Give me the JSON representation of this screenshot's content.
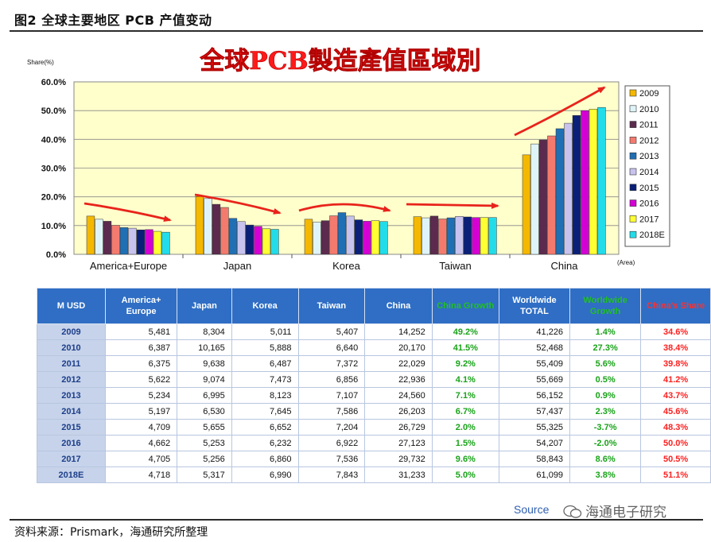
{
  "figure_title": "图2  全球主要地区 PCB 产值变动",
  "footer_source": "资料来源：Prismark，海通研究所整理",
  "watermark": "海通电子研究",
  "source_note": "Source",
  "chart_data": {
    "type": "bar",
    "title": "全球PCB製造產值區域別",
    "ylabel": "Share(%)",
    "xlabel": "(Area)",
    "ylim": [
      0,
      60
    ],
    "yticks": [
      "0.0%",
      "10.0%",
      "20.0%",
      "30.0%",
      "40.0%",
      "50.0%",
      "60.0%"
    ],
    "grid": true,
    "legend_position": "right",
    "categories": [
      "America+Europe",
      "Japan",
      "Korea",
      "Taiwan",
      "China"
    ],
    "series": [
      {
        "name": "2009",
        "color": "#f5b800",
        "values": [
          13.3,
          20.1,
          12.2,
          13.1,
          34.6
        ]
      },
      {
        "name": "2010",
        "color": "#dff4f8",
        "values": [
          12.2,
          19.4,
          11.2,
          12.7,
          38.4
        ]
      },
      {
        "name": "2011",
        "color": "#5c2a4e",
        "values": [
          11.5,
          17.4,
          11.7,
          13.3,
          39.8
        ]
      },
      {
        "name": "2012",
        "color": "#f47a6e",
        "values": [
          10.1,
          16.3,
          13.4,
          12.3,
          41.2
        ]
      },
      {
        "name": "2013",
        "color": "#1f6fb5",
        "values": [
          9.3,
          12.5,
          14.5,
          12.7,
          43.7
        ]
      },
      {
        "name": "2014",
        "color": "#c7c3ee",
        "values": [
          9.1,
          11.4,
          13.3,
          13.2,
          45.6
        ]
      },
      {
        "name": "2015",
        "color": "#0a1f78",
        "values": [
          8.5,
          10.2,
          12.0,
          13.0,
          48.3
        ]
      },
      {
        "name": "2016",
        "color": "#d400d4",
        "values": [
          8.6,
          9.7,
          11.5,
          12.8,
          50.0
        ]
      },
      {
        "name": "2017",
        "color": "#ffff33",
        "values": [
          8.0,
          8.9,
          11.7,
          12.8,
          50.5
        ]
      },
      {
        "name": "2018E",
        "color": "#22dcea",
        "values": [
          7.7,
          8.7,
          11.4,
          12.8,
          51.1
        ]
      }
    ],
    "trend_arrows_color": "#e8231b"
  },
  "table": {
    "headers": [
      "M USD",
      "America+ Europe",
      "Japan",
      "Korea",
      "Taiwan",
      "China",
      "China Growth",
      "Worldwide TOTAL",
      "Worldwide Growth",
      "China's Share"
    ],
    "rows": [
      [
        "2009",
        "5,481",
        "8,304",
        "5,011",
        "5,407",
        "14,252",
        "49.2%",
        "41,226",
        "1.4%",
        "34.6%"
      ],
      [
        "2010",
        "6,387",
        "10,165",
        "5,888",
        "6,640",
        "20,170",
        "41.5%",
        "52,468",
        "27.3%",
        "38.4%"
      ],
      [
        "2011",
        "6,375",
        "9,638",
        "6,487",
        "7,372",
        "22,029",
        "9.2%",
        "55,409",
        "5.6%",
        "39.8%"
      ],
      [
        "2012",
        "5,622",
        "9,074",
        "7,473",
        "6,856",
        "22,936",
        "4.1%",
        "55,669",
        "0.5%",
        "41.2%"
      ],
      [
        "2013",
        "5,234",
        "6,995",
        "8,123",
        "7,107",
        "24,560",
        "7.1%",
        "56,152",
        "0.9%",
        "43.7%"
      ],
      [
        "2014",
        "5,197",
        "6,530",
        "7,645",
        "7,586",
        "26,203",
        "6.7%",
        "57,437",
        "2.3%",
        "45.6%"
      ],
      [
        "2015",
        "4,709",
        "5,655",
        "6,652",
        "7,204",
        "26,729",
        "2.0%",
        "55,325",
        "-3.7%",
        "48.3%"
      ],
      [
        "2016",
        "4,662",
        "5,253",
        "6,232",
        "6,922",
        "27,123",
        "1.5%",
        "54,207",
        "-2.0%",
        "50.0%"
      ],
      [
        "2017",
        "4,705",
        "5,256",
        "6,860",
        "7,536",
        "29,732",
        "9.6%",
        "58,843",
        "8.6%",
        "50.5%"
      ],
      [
        "2018E",
        "4,718",
        "5,317",
        "6,990",
        "7,843",
        "31,233",
        "5.0%",
        "61,099",
        "3.8%",
        "51.1%"
      ]
    ]
  }
}
